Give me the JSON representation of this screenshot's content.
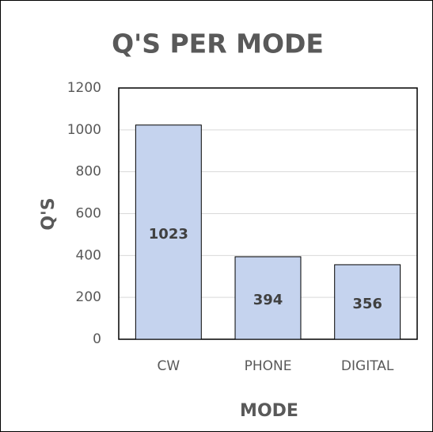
{
  "chart_data": {
    "type": "bar",
    "title": "Q'S PER MODE",
    "x_label": "MODE",
    "y_label": "Q'S",
    "categories": [
      "CW",
      "PHONE",
      "DIGITAL"
    ],
    "values": [
      1023,
      394,
      356
    ],
    "color": "#c5d3ee",
    "ylim": [
      0,
      1200
    ],
    "yticks": [
      0,
      200,
      400,
      600,
      800,
      1000,
      1200
    ],
    "grid": true
  }
}
